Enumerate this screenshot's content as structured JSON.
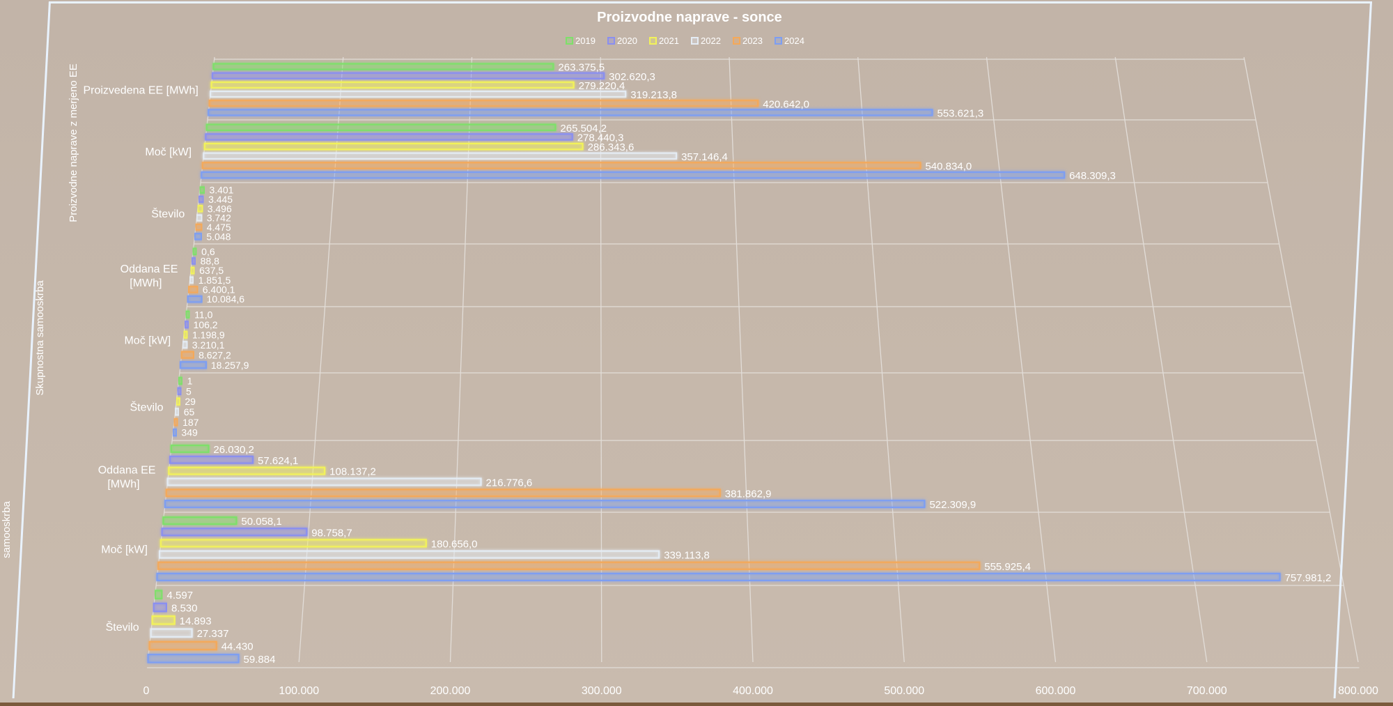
{
  "chart_data": {
    "type": "bar",
    "orientation": "horizontal",
    "title": "Proizvodne naprave - sonce",
    "groups": [
      {
        "name": "Proizvodne naprave z merjeno EE",
        "categories": [
          0,
          1,
          2
        ]
      },
      {
        "name": "Skupnostna samooskrba",
        "categories": [
          3,
          4,
          5
        ]
      },
      {
        "name": "samooskrba",
        "categories": [
          6,
          7,
          8
        ]
      }
    ],
    "categories": [
      {
        "label": "Proizvedena EE [MWh]"
      },
      {
        "label": "Moč [kW]"
      },
      {
        "label": "Število"
      },
      {
        "label": "Oddana EE [MWh]"
      },
      {
        "label": "Moč [kW]"
      },
      {
        "label": "Število"
      },
      {
        "label": "Oddana EE [MWh]"
      },
      {
        "label": "Moč [kW]"
      },
      {
        "label": "Število"
      }
    ],
    "series": [
      {
        "name": "2019",
        "color": "#7ee06a",
        "values": [
          263375.5,
          265504.2,
          3401,
          0.6,
          11.0,
          1,
          26030.2,
          50058.1,
          4597
        ],
        "labels": [
          "263.375,5",
          "265.504,2",
          "3.401",
          "0,6",
          "11,0",
          "1",
          "26.030,2",
          "50.058,1",
          "4.597"
        ]
      },
      {
        "name": "2020",
        "color": "#8a8ff0",
        "values": [
          302620.3,
          278440.3,
          3445,
          88.8,
          106.2,
          5,
          57624.1,
          98758.7,
          8530
        ],
        "labels": [
          "302.620,3",
          "278.440,3",
          "3.445",
          "88,8",
          "106,2",
          "5",
          "57.624,1",
          "98.758,7",
          "8.530"
        ]
      },
      {
        "name": "2021",
        "color": "#f2f25a",
        "values": [
          279220.4,
          286343.6,
          3496,
          637.5,
          1198.9,
          29,
          108137.2,
          180656.0,
          14893
        ],
        "labels": [
          "279.220,4",
          "286.343,6",
          "3.496",
          "637,5",
          "1.198,9",
          "29",
          "108.137,2",
          "180.656,0",
          "14.893"
        ]
      },
      {
        "name": "2022",
        "color": "#e4ecf4",
        "values": [
          319213.8,
          357146.4,
          3742,
          1851.5,
          3210.1,
          65,
          216776.6,
          339113.8,
          27337
        ],
        "labels": [
          "319.213,8",
          "357.146,4",
          "3.742",
          "1.851,5",
          "3.210,1",
          "65",
          "216.776,6",
          "339.113,8",
          "27.337"
        ]
      },
      {
        "name": "2023",
        "color": "#f4a95a",
        "values": [
          420642.0,
          540834.0,
          4475,
          6400.1,
          8627.2,
          187,
          381862.9,
          555925.4,
          44430
        ],
        "labels": [
          "420.642,0",
          "540.834,0",
          "4.475",
          "6.400,1",
          "8.627,2",
          "187",
          "381.862,9",
          "555.925,4",
          "44.430"
        ]
      },
      {
        "name": "2024",
        "color": "#7d9ef2",
        "values": [
          553621.3,
          648309.3,
          5048,
          10084.6,
          18257.9,
          349,
          522309.9,
          757981.2,
          59884
        ],
        "labels": [
          "553.621,3",
          "648.309,3",
          "5.048",
          "10.084,6",
          "18.257,9",
          "349",
          "522.309,9",
          "757.981,2",
          "59.884"
        ]
      }
    ],
    "xlim": [
      0,
      800000
    ],
    "xticks": [
      "0",
      "100.000",
      "200.000",
      "300.000",
      "400.000",
      "500.000",
      "600.000",
      "700.000",
      "800.000"
    ],
    "grid": true,
    "legend_position": "top"
  }
}
